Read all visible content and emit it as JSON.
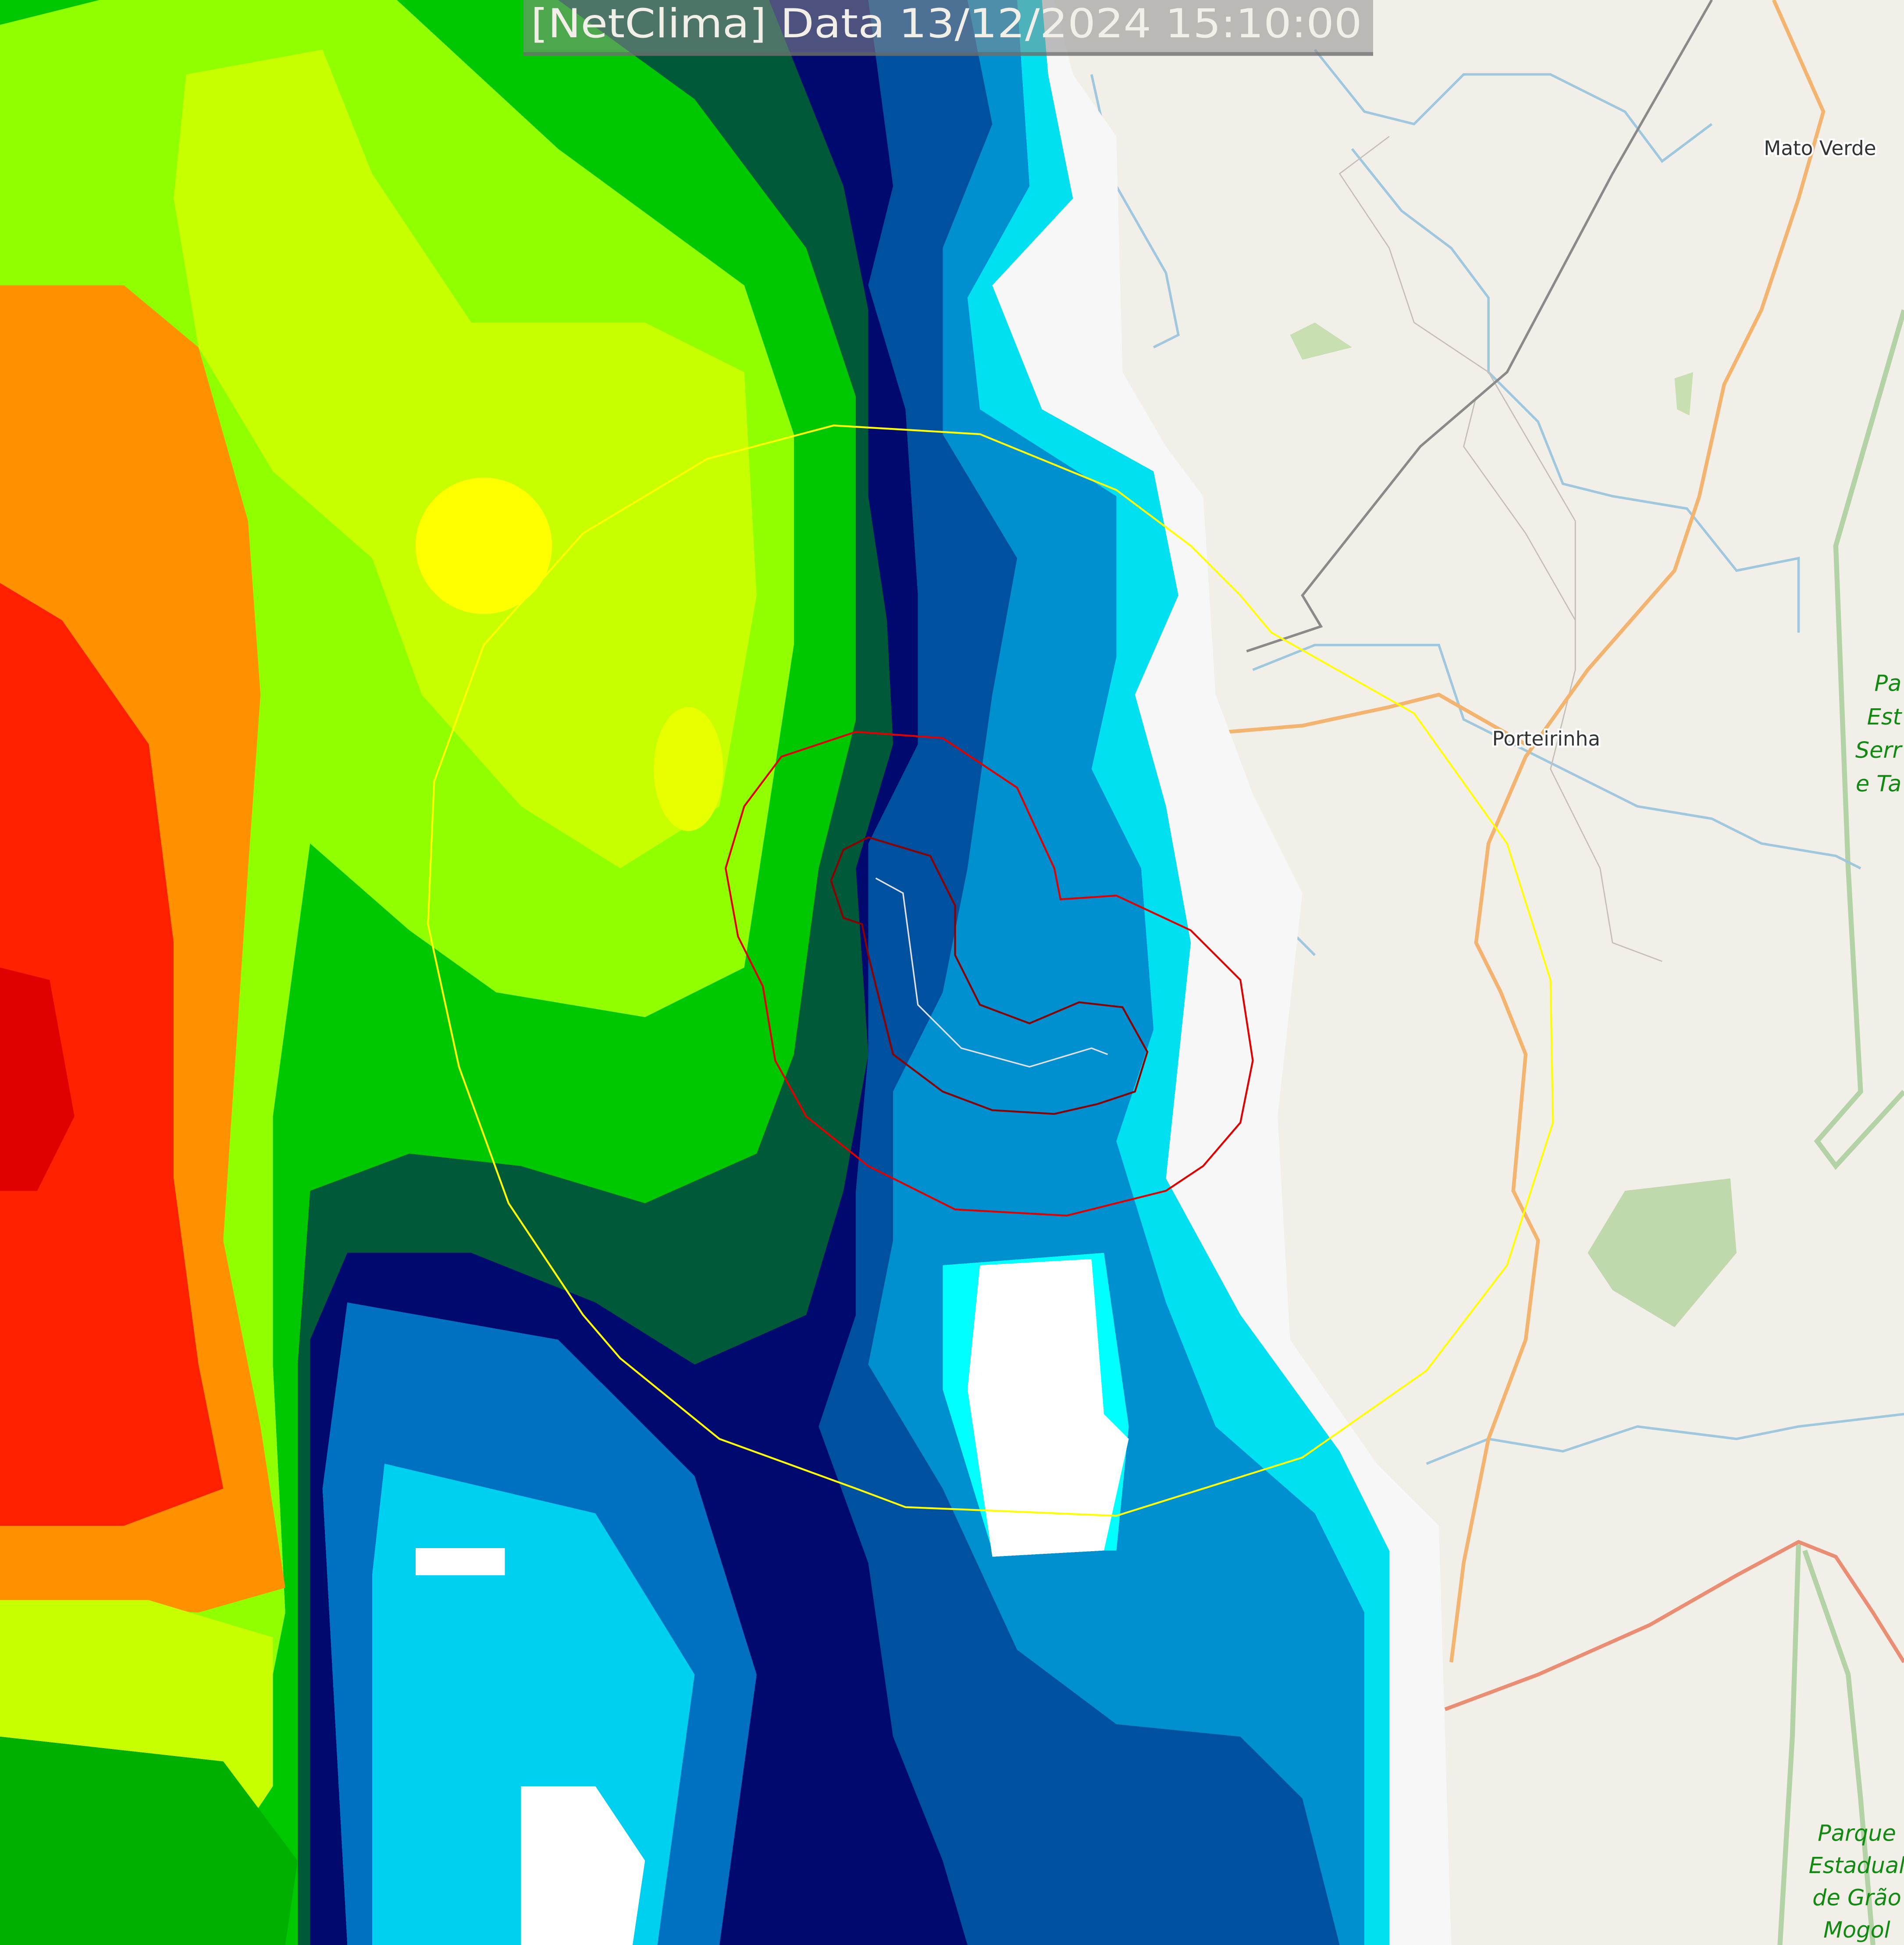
{
  "title": "[NetClima] Data 13/12/2024 15:10:00",
  "places": {
    "mato_verde": "Mato Verde",
    "porteirinha": "Porteirinha"
  },
  "parks": {
    "serra_top": [
      "Pa",
      "Est",
      "Serr",
      "e Ta"
    ],
    "grao_mogol": [
      "Parque",
      "Estadual",
      "de Grão",
      "Mogol"
    ]
  },
  "colors": {
    "map_background": "#f2efe9",
    "river": "#9fc8de",
    "road": "#f3b46f",
    "primary_road": "#e98e72",
    "railway": "#808080",
    "park": "#b8d7a4",
    "park_label": "#118a11",
    "outer_ring": "#ffff00",
    "mid_contour": "#e00000",
    "inner_contour": "#8b0000",
    "track": "#e0e0e0",
    "radar_scale": [
      "#ff0000",
      "#ff8000",
      "#ffff00",
      "#b2ff00",
      "#00ff00",
      "#00a020",
      "#005a3a",
      "#000a6e",
      "#0060b0",
      "#00b8e0",
      "#00ffff",
      "#ffffff"
    ]
  }
}
